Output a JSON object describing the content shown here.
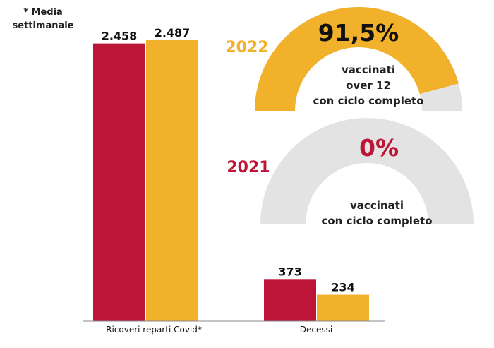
{
  "note": {
    "line1": "* Media",
    "line2": "settimanale"
  },
  "colors": {
    "y2021": "#bd1538",
    "y2022": "#f2b12b",
    "empty": "#e3e3e3",
    "axis": "#888888"
  },
  "chart_data": [
    {
      "type": "bar",
      "categories": [
        "Ricoveri reparti Covid*",
        "Decessi"
      ],
      "series": [
        {
          "values": [
            2458,
            373
          ],
          "labels": [
            "2.458",
            "373"
          ]
        },
        {
          "values": [
            2487,
            234
          ],
          "labels": [
            "2.487",
            "234"
          ]
        }
      ],
      "ylim": [
        0,
        2487
      ]
    },
    {
      "type": "pie",
      "year": "2022",
      "value": 91.5,
      "value_label": "91,5%",
      "caption": [
        "vaccinati",
        "over 12",
        "con ciclo completo"
      ]
    },
    {
      "type": "pie",
      "year": "2021",
      "value": 0,
      "value_label": "0%",
      "caption": [
        "vaccinati",
        "con ciclo completo"
      ]
    }
  ]
}
